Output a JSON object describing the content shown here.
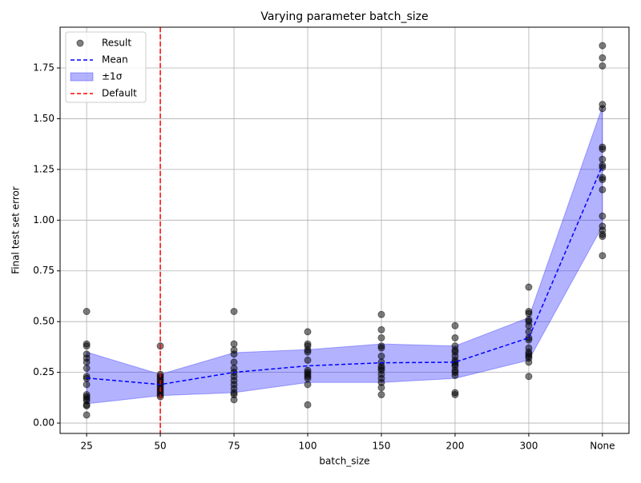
{
  "chart_data": {
    "type": "line",
    "title": "Varying parameter batch_size",
    "x_label": "batch_size",
    "y_label": "Final test set error",
    "categories": [
      "25",
      "50",
      "75",
      "100",
      "150",
      "200",
      "300",
      "None"
    ],
    "ylim": [
      -0.051,
      1.951
    ],
    "yticks": [
      {
        "value": 0,
        "label": "0.00"
      },
      {
        "value": 0.25,
        "label": "0.25"
      },
      {
        "value": 0.5,
        "label": "0.50"
      },
      {
        "value": 0.75,
        "label": "0.75"
      },
      {
        "value": 1,
        "label": "1.00"
      },
      {
        "value": 1.25,
        "label": "1.25"
      },
      {
        "value": 1.5,
        "label": "1.50"
      },
      {
        "value": 1.75,
        "label": "1.75"
      }
    ],
    "grid": true,
    "legend": "upper left",
    "series": [
      {
        "name": "Result",
        "kind": "scatter",
        "color": "#000000",
        "opacity": 0.5,
        "values": [
          [
            0.55,
            0.39,
            0.38,
            0.34,
            0.32,
            0.3,
            0.27,
            0.23,
            0.22,
            0.19,
            0.14,
            0.13,
            0.12,
            0.11,
            0.09,
            0.085,
            0.04
          ],
          [
            0.38,
            0.24,
            0.23,
            0.22,
            0.21,
            0.2,
            0.19,
            0.18,
            0.17,
            0.16,
            0.15,
            0.14,
            0.13
          ],
          [
            0.55,
            0.39,
            0.36,
            0.34,
            0.3,
            0.27,
            0.25,
            0.23,
            0.21,
            0.19,
            0.17,
            0.15,
            0.14,
            0.115
          ],
          [
            0.45,
            0.39,
            0.38,
            0.36,
            0.35,
            0.31,
            0.26,
            0.25,
            0.24,
            0.23,
            0.22,
            0.19,
            0.09
          ],
          [
            0.535,
            0.46,
            0.42,
            0.38,
            0.37,
            0.33,
            0.3,
            0.28,
            0.27,
            0.26,
            0.24,
            0.22,
            0.2,
            0.175,
            0.14
          ],
          [
            0.48,
            0.42,
            0.38,
            0.36,
            0.35,
            0.33,
            0.31,
            0.3,
            0.29,
            0.28,
            0.26,
            0.25,
            0.235,
            0.15,
            0.14
          ],
          [
            0.67,
            0.55,
            0.54,
            0.51,
            0.5,
            0.48,
            0.45,
            0.42,
            0.41,
            0.37,
            0.35,
            0.34,
            0.33,
            0.32,
            0.3,
            0.23
          ],
          [
            1.86,
            1.8,
            1.76,
            1.57,
            1.55,
            1.36,
            1.35,
            1.3,
            1.27,
            1.26,
            1.21,
            1.2,
            1.15,
            1.02,
            0.97,
            0.95,
            0.93,
            0.92,
            0.825
          ]
        ]
      },
      {
        "name": "Mean",
        "kind": "line",
        "color": "#0000ff",
        "dashed": true,
        "values": [
          0.222,
          0.19,
          0.25,
          0.282,
          0.297,
          0.3,
          0.42,
          1.27
        ]
      },
      {
        "name": "±1σ",
        "kind": "band",
        "color": "#0000ff",
        "opacity": 0.3,
        "lower": [
          0.095,
          0.135,
          0.15,
          0.2,
          0.2,
          0.22,
          0.31,
          0.97
        ],
        "upper": [
          0.35,
          0.24,
          0.347,
          0.362,
          0.39,
          0.38,
          0.52,
          1.56
        ]
      },
      {
        "name": "Default",
        "kind": "vline",
        "color": "#ff0000",
        "dashed": true,
        "x": "50"
      }
    ]
  }
}
